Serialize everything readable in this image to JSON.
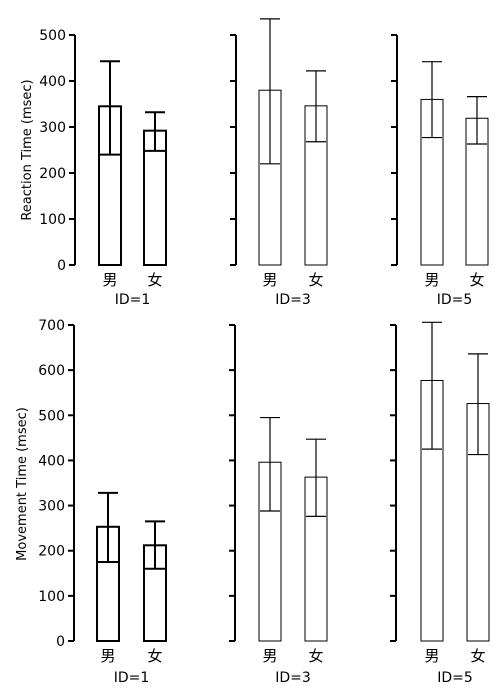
{
  "chart_data": [
    {
      "type": "bar",
      "ylabel": "Reaction Time (msec)",
      "ylim": [
        0,
        500
      ],
      "yticks": [
        0,
        100,
        200,
        300,
        400,
        500
      ],
      "groups": [
        {
          "label": "ID=1",
          "categories": [
            "男",
            "女"
          ],
          "values": [
            345,
            292
          ],
          "err_low": [
            240,
            248
          ],
          "err_high": [
            443,
            332
          ]
        },
        {
          "label": "ID=3",
          "categories": [
            "男",
            "女"
          ],
          "values": [
            380,
            346
          ],
          "err_low": [
            220,
            268
          ],
          "err_high": [
            535,
            422
          ]
        },
        {
          "label": "ID=5",
          "categories": [
            "男",
            "女"
          ],
          "values": [
            360,
            319
          ],
          "err_low": [
            277,
            263
          ],
          "err_high": [
            442,
            366
          ]
        }
      ]
    },
    {
      "type": "bar",
      "ylabel": "Movement Time (msec)",
      "ylim": [
        0,
        700
      ],
      "yticks": [
        0,
        100,
        200,
        300,
        400,
        500,
        600,
        700
      ],
      "groups": [
        {
          "label": "ID=1",
          "categories": [
            "男",
            "女"
          ],
          "values": [
            253,
            212
          ],
          "err_low": [
            175,
            160
          ],
          "err_high": [
            328,
            265
          ]
        },
        {
          "label": "ID=3",
          "categories": [
            "男",
            "女"
          ],
          "values": [
            396,
            363
          ],
          "err_low": [
            288,
            276
          ],
          "err_high": [
            495,
            447
          ]
        },
        {
          "label": "ID=5",
          "categories": [
            "男",
            "女"
          ],
          "values": [
            577,
            526
          ],
          "err_low": [
            425,
            413
          ],
          "err_high": [
            706,
            636
          ]
        }
      ]
    }
  ]
}
